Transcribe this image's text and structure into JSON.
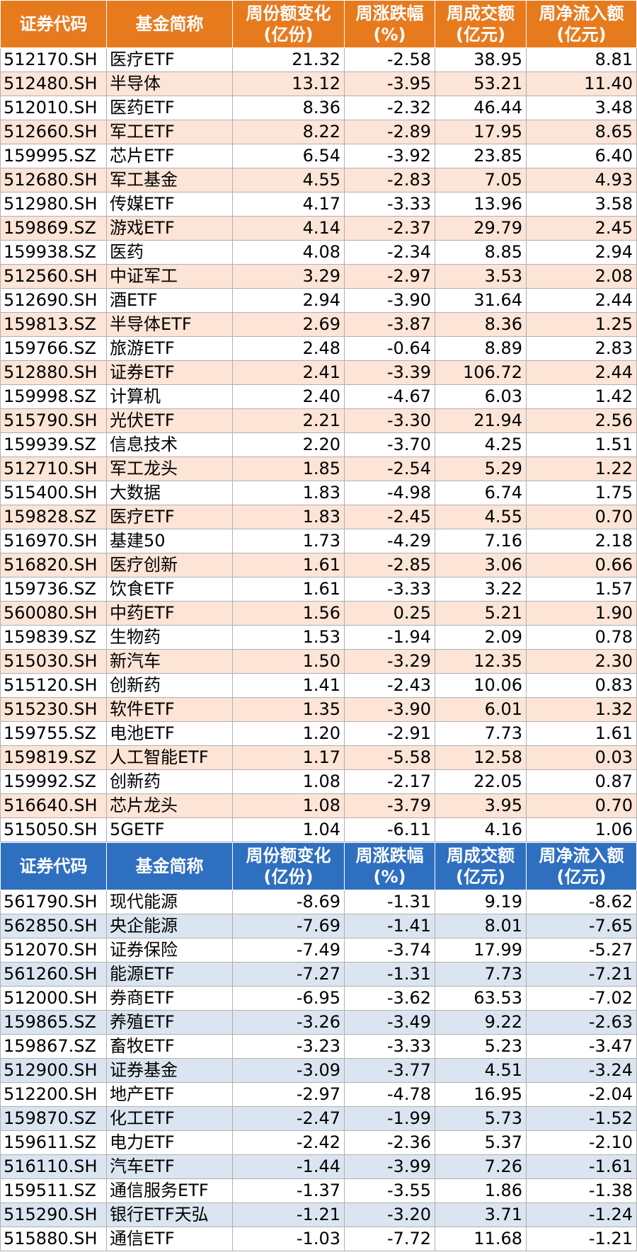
{
  "gain_table": {
    "headers": [
      "证券代码",
      "基金简称",
      "周份额变化\n(亿份)",
      "周涨跌幅\n(%)",
      "周成交额\n(亿元)",
      "周净流入额\n(亿元)"
    ],
    "header_color": "#e87a1e",
    "stripe_color": "#fce4d6",
    "rows": [
      [
        "512170.SH",
        "医疗ETF",
        "21.32",
        "-2.58",
        "38.95",
        "8.81"
      ],
      [
        "512480.SH",
        "半导体",
        "13.12",
        "-3.95",
        "53.21",
        "11.40"
      ],
      [
        "512010.SH",
        "医药ETF",
        "8.36",
        "-2.32",
        "46.44",
        "3.48"
      ],
      [
        "512660.SH",
        "军工ETF",
        "8.22",
        "-2.89",
        "17.95",
        "8.65"
      ],
      [
        "159995.SZ",
        "芯片ETF",
        "6.54",
        "-3.92",
        "23.85",
        "6.40"
      ],
      [
        "512680.SH",
        "军工基金",
        "4.55",
        "-2.83",
        "7.05",
        "4.93"
      ],
      [
        "512980.SH",
        "传媒ETF",
        "4.17",
        "-3.33",
        "13.96",
        "3.58"
      ],
      [
        "159869.SZ",
        "游戏ETF",
        "4.14",
        "-2.37",
        "29.79",
        "2.45"
      ],
      [
        "159938.SZ",
        "医药",
        "4.08",
        "-2.34",
        "8.85",
        "2.94"
      ],
      [
        "512560.SH",
        "中证军工",
        "3.29",
        "-2.97",
        "3.53",
        "2.08"
      ],
      [
        "512690.SH",
        "酒ETF",
        "2.94",
        "-3.90",
        "31.64",
        "2.44"
      ],
      [
        "159813.SZ",
        "半导体ETF",
        "2.69",
        "-3.87",
        "8.36",
        "1.25"
      ],
      [
        "159766.SZ",
        "旅游ETF",
        "2.48",
        "-0.64",
        "8.89",
        "2.83"
      ],
      [
        "512880.SH",
        "证券ETF",
        "2.41",
        "-3.39",
        "106.72",
        "2.44"
      ],
      [
        "159998.SZ",
        "计算机",
        "2.40",
        "-4.67",
        "6.03",
        "1.42"
      ],
      [
        "515790.SH",
        "光伏ETF",
        "2.21",
        "-3.30",
        "21.94",
        "2.56"
      ],
      [
        "159939.SZ",
        "信息技术",
        "2.20",
        "-3.70",
        "4.25",
        "1.51"
      ],
      [
        "512710.SH",
        "军工龙头",
        "1.85",
        "-2.54",
        "5.29",
        "1.22"
      ],
      [
        "515400.SH",
        "大数据",
        "1.83",
        "-4.98",
        "6.74",
        "1.75"
      ],
      [
        "159828.SZ",
        "医疗ETF",
        "1.83",
        "-2.45",
        "4.55",
        "0.70"
      ],
      [
        "516970.SH",
        "基建50",
        "1.73",
        "-4.29",
        "7.16",
        "2.18"
      ],
      [
        "516820.SH",
        "医疗创新",
        "1.61",
        "-2.85",
        "3.06",
        "0.66"
      ],
      [
        "159736.SZ",
        "饮食ETF",
        "1.61",
        "-3.33",
        "3.22",
        "1.57"
      ],
      [
        "560080.SH",
        "中药ETF",
        "1.56",
        "0.25",
        "5.21",
        "1.90"
      ],
      [
        "159839.SZ",
        "生物药",
        "1.53",
        "-1.94",
        "2.09",
        "0.78"
      ],
      [
        "515030.SH",
        "新汽车",
        "1.50",
        "-3.29",
        "12.35",
        "2.30"
      ],
      [
        "515120.SH",
        "创新药",
        "1.41",
        "-2.43",
        "10.06",
        "0.83"
      ],
      [
        "515230.SH",
        "软件ETF",
        "1.35",
        "-3.90",
        "6.01",
        "1.32"
      ],
      [
        "159755.SZ",
        "电池ETF",
        "1.20",
        "-2.91",
        "7.73",
        "1.61"
      ],
      [
        "159819.SZ",
        "人工智能ETF",
        "1.17",
        "-5.58",
        "12.58",
        "0.03"
      ],
      [
        "159992.SZ",
        "创新药",
        "1.08",
        "-2.17",
        "22.05",
        "0.87"
      ],
      [
        "516640.SH",
        "芯片龙头",
        "1.08",
        "-3.79",
        "3.95",
        "0.70"
      ],
      [
        "515050.SH",
        "5GETF",
        "1.04",
        "-6.11",
        "4.16",
        "1.06"
      ]
    ]
  },
  "loss_table": {
    "headers": [
      "证券代码",
      "基金简称",
      "周份额变化\n(亿份)",
      "周涨跌幅\n(%)",
      "周成交额\n(亿元)",
      "周净流入额\n(亿元)"
    ],
    "header_color": "#2f6fc0",
    "stripe_color": "#dbe5f1",
    "rows": [
      [
        "561790.SH",
        "现代能源",
        "-8.69",
        "-1.31",
        "9.19",
        "-8.62"
      ],
      [
        "562850.SH",
        "央企能源",
        "-7.69",
        "-1.41",
        "8.01",
        "-7.65"
      ],
      [
        "512070.SH",
        "证券保险",
        "-7.49",
        "-3.74",
        "17.99",
        "-5.27"
      ],
      [
        "561260.SH",
        "能源ETF",
        "-7.27",
        "-1.31",
        "7.73",
        "-7.21"
      ],
      [
        "512000.SH",
        "券商ETF",
        "-6.95",
        "-3.62",
        "63.53",
        "-7.02"
      ],
      [
        "159865.SZ",
        "养殖ETF",
        "-3.26",
        "-3.49",
        "9.22",
        "-2.63"
      ],
      [
        "159867.SZ",
        "畜牧ETF",
        "-3.23",
        "-3.33",
        "5.23",
        "-3.47"
      ],
      [
        "512900.SH",
        "证券基金",
        "-3.09",
        "-3.77",
        "4.51",
        "-3.24"
      ],
      [
        "512200.SH",
        "地产ETF",
        "-2.97",
        "-4.78",
        "16.95",
        "-2.04"
      ],
      [
        "159870.SZ",
        "化工ETF",
        "-2.47",
        "-1.99",
        "5.73",
        "-1.52"
      ],
      [
        "159611.SZ",
        "电力ETF",
        "-2.42",
        "-2.36",
        "5.37",
        "-2.10"
      ],
      [
        "516110.SH",
        "汽车ETF",
        "-1.44",
        "-3.99",
        "7.26",
        "-1.61"
      ],
      [
        "159511.SZ",
        "通信服务ETF",
        "-1.37",
        "-3.55",
        "1.86",
        "-1.38"
      ],
      [
        "515290.SH",
        "银行ETF天弘",
        "-1.21",
        "-3.20",
        "3.71",
        "-1.24"
      ],
      [
        "515880.SH",
        "通信ETF",
        "-1.03",
        "-7.72",
        "11.68",
        "-1.21"
      ]
    ]
  }
}
